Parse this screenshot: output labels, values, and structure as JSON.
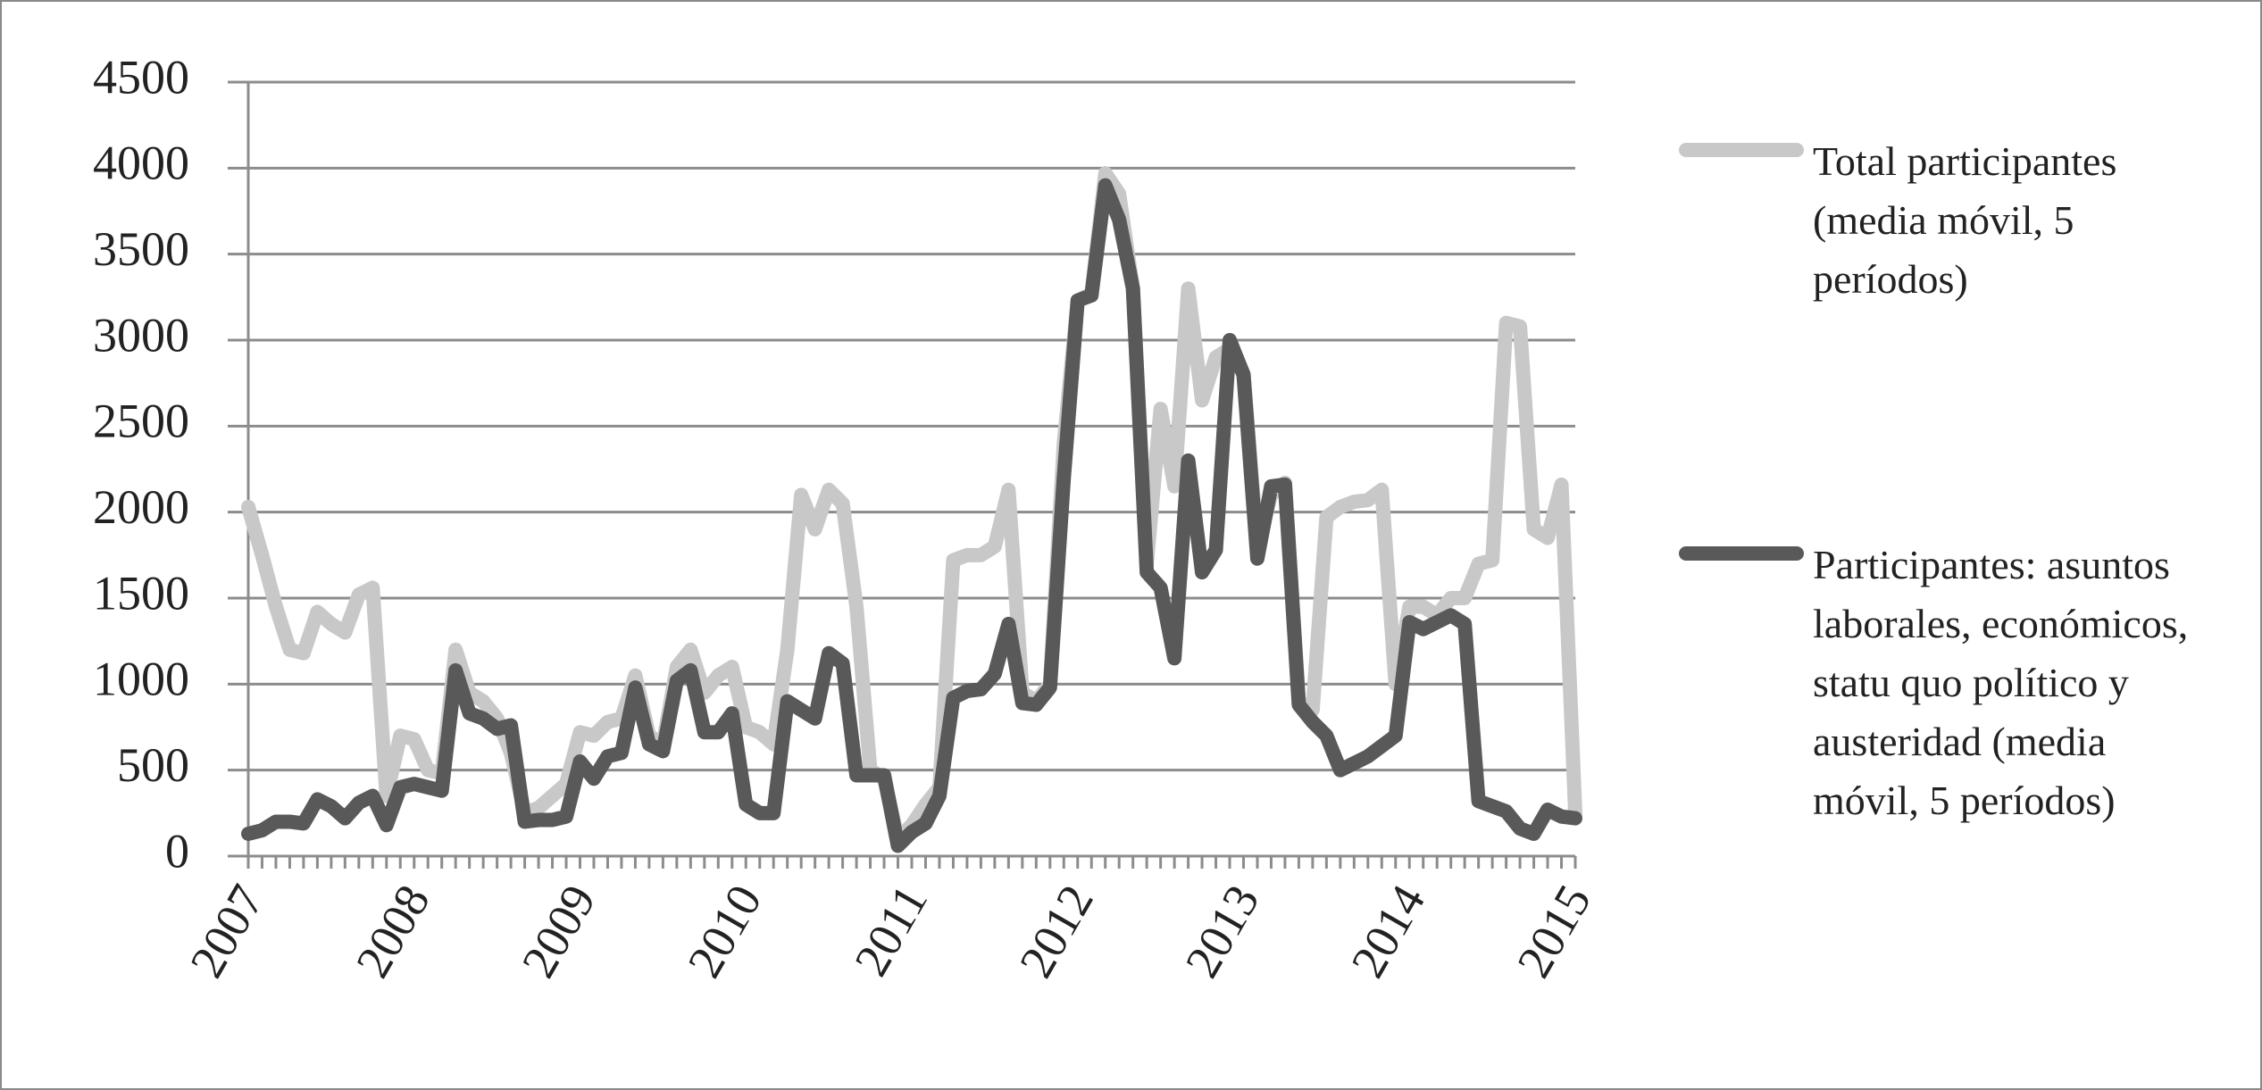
{
  "chart_data": {
    "type": "line",
    "categories": [
      "2007",
      null,
      null,
      null,
      null,
      null,
      null,
      null,
      null,
      null,
      null,
      null,
      "2008",
      null,
      null,
      null,
      null,
      null,
      null,
      null,
      null,
      null,
      null,
      null,
      "2009",
      null,
      null,
      null,
      null,
      null,
      null,
      null,
      null,
      null,
      null,
      null,
      "2010",
      null,
      null,
      null,
      null,
      null,
      null,
      null,
      null,
      null,
      null,
      null,
      "2011",
      null,
      null,
      null,
      null,
      null,
      null,
      null,
      null,
      null,
      null,
      null,
      "2012",
      null,
      null,
      null,
      null,
      null,
      null,
      null,
      null,
      null,
      null,
      null,
      "2013",
      null,
      null,
      null,
      null,
      null,
      null,
      null,
      null,
      null,
      null,
      null,
      "2014",
      null,
      null,
      null,
      null,
      null,
      null,
      null,
      null,
      null,
      null,
      null,
      "2015"
    ],
    "series": [
      {
        "name": "Total participantes (media móvil, 5 períodos)",
        "color": "#c8c8c8",
        "values": [
          2030,
          1750,
          1450,
          1200,
          1180,
          1420,
          1350,
          1300,
          1520,
          1560,
          350,
          700,
          680,
          500,
          480,
          1200,
          950,
          900,
          800,
          600,
          250,
          280,
          350,
          420,
          720,
          700,
          780,
          800,
          1050,
          700,
          650,
          1100,
          1200,
          950,
          1050,
          1100,
          750,
          720,
          650,
          1200,
          2100,
          1900,
          2130,
          2050,
          1450,
          500,
          450,
          100,
          180,
          300,
          400,
          1720,
          1750,
          1750,
          1800,
          2130,
          950,
          900,
          1000,
          2400,
          3230,
          3270,
          3970,
          3850,
          3300,
          1700,
          2600,
          2150,
          3300,
          2650,
          2900,
          2950,
          2800,
          1800,
          2100,
          2170,
          900,
          850,
          1970,
          2030,
          2060,
          2070,
          2130,
          1000,
          1450,
          1450,
          1400,
          1500,
          1500,
          1700,
          1720,
          3100,
          3080,
          1900,
          1850,
          2160,
          250
        ]
      },
      {
        "name": "Participantes: asuntos laborales, económicos, statu quo político y austeridad (media móvil, 5 períodos)",
        "color": "#595959",
        "values": [
          130,
          150,
          200,
          200,
          190,
          330,
          290,
          220,
          310,
          350,
          180,
          400,
          420,
          400,
          380,
          1080,
          830,
          800,
          740,
          760,
          200,
          210,
          210,
          230,
          550,
          450,
          580,
          600,
          980,
          650,
          610,
          1020,
          1080,
          720,
          720,
          830,
          300,
          250,
          250,
          900,
          850,
          800,
          1180,
          1120,
          470,
          470,
          470,
          60,
          140,
          190,
          350,
          920,
          960,
          970,
          1060,
          1350,
          890,
          880,
          980,
          2200,
          3230,
          3260,
          3900,
          3700,
          3300,
          1650,
          1560,
          1150,
          2300,
          1650,
          1780,
          3000,
          2800,
          1730,
          2150,
          2160,
          880,
          780,
          700,
          500,
          540,
          580,
          640,
          700,
          1360,
          1320,
          1360,
          1400,
          1350,
          320,
          290,
          260,
          160,
          130,
          270,
          230,
          220
        ]
      }
    ],
    "ylim": [
      0,
      4500
    ],
    "yticks": [
      0,
      500,
      1000,
      1500,
      2000,
      2500,
      3000,
      3500,
      4000,
      4500
    ],
    "grid": true
  }
}
